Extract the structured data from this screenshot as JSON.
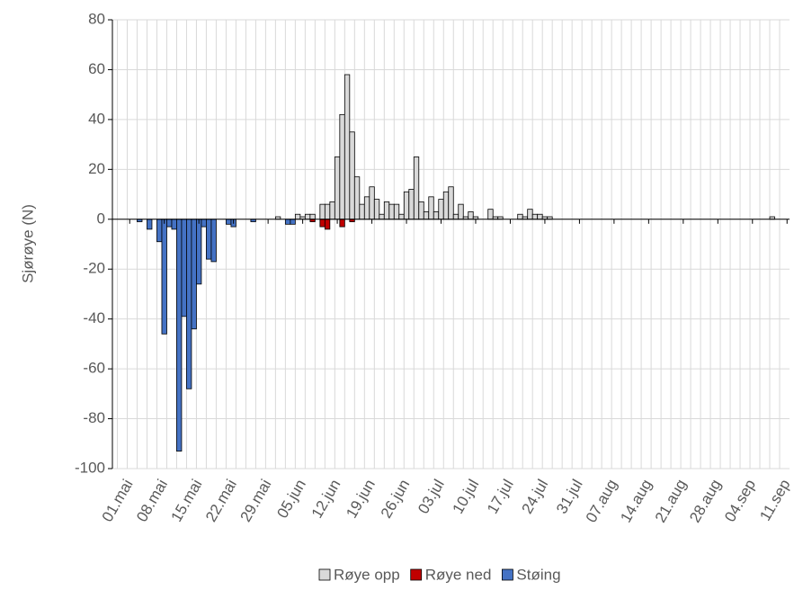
{
  "chart_data": {
    "type": "bar",
    "stacked": true,
    "y_label": "Sjørøye (N)",
    "categories": [
      null,
      null,
      null,
      "01.mai",
      null,
      null,
      null,
      null,
      null,
      null,
      "08.mai",
      null,
      null,
      null,
      null,
      null,
      null,
      "15.mai",
      null,
      null,
      null,
      null,
      null,
      null,
      "22.mai",
      null,
      null,
      null,
      null,
      null,
      null,
      "29.mai",
      null,
      null,
      null,
      null,
      null,
      null,
      "05.jun",
      null,
      null,
      null,
      null,
      null,
      null,
      "12.jun",
      null,
      null,
      null,
      null,
      null,
      null,
      "19.jun",
      null,
      null,
      null,
      null,
      null,
      null,
      "26.jun",
      null,
      null,
      null,
      null,
      null,
      null,
      "03.jul",
      null,
      null,
      null,
      null,
      null,
      null,
      "10.jul",
      null,
      null,
      null,
      null,
      null,
      null,
      "17.jul",
      null,
      null,
      null,
      null,
      null,
      null,
      "24.jul",
      null,
      null,
      null,
      null,
      null,
      null,
      "31.jul",
      null,
      null,
      null,
      null,
      null,
      null,
      "07.aug",
      null,
      null,
      null,
      null,
      null,
      null,
      "14.aug",
      null,
      null,
      null,
      null,
      null,
      null,
      "21.aug",
      null,
      null,
      null,
      null,
      null,
      null,
      "28.aug",
      null,
      null,
      null,
      null,
      null,
      null,
      "04.sep",
      null,
      null,
      null,
      null,
      null,
      null,
      "11.sep"
    ],
    "series": [
      {
        "name": "Røye opp",
        "color": "#d9d9d9",
        "values": [
          0,
          0,
          0,
          0,
          0,
          0,
          0,
          0,
          0,
          0,
          0,
          0,
          0,
          0,
          0,
          0,
          0,
          0,
          0,
          0,
          0,
          0,
          0,
          0,
          0,
          0,
          0,
          0,
          0,
          0,
          0,
          0,
          0,
          1,
          0,
          0,
          0,
          2,
          1,
          2,
          2,
          0,
          6,
          6,
          7,
          25,
          42,
          58,
          35,
          17,
          6,
          9,
          13,
          8,
          2,
          7,
          6,
          6,
          2,
          11,
          12,
          25,
          7,
          3,
          9,
          3,
          8,
          11,
          13,
          2,
          6,
          1,
          3,
          1,
          0,
          0,
          4,
          1,
          1,
          0,
          0,
          0,
          2,
          1,
          4,
          2,
          2,
          1,
          1,
          0,
          0,
          0,
          0,
          0,
          0,
          0,
          0,
          0,
          0,
          0,
          0,
          0,
          0,
          0,
          0,
          0,
          0,
          0,
          0,
          0,
          0,
          0,
          0,
          0,
          0,
          0,
          0,
          0,
          0,
          0,
          0,
          0,
          0,
          0,
          0,
          0,
          0,
          0,
          0,
          0,
          0,
          0,
          0,
          1,
          0,
          0,
          0
        ]
      },
      {
        "name": "Røye ned",
        "color": "#c00000",
        "values": [
          0,
          0,
          0,
          0,
          0,
          0,
          0,
          0,
          0,
          0,
          0,
          0,
          0,
          0,
          0,
          0,
          0,
          0,
          0,
          0,
          0,
          0,
          0,
          0,
          0,
          0,
          0,
          0,
          0,
          0,
          0,
          0,
          0,
          0,
          0,
          0,
          0,
          0,
          0,
          0,
          -1,
          0,
          -3,
          -4,
          0,
          0,
          -3,
          0,
          -1,
          0,
          0,
          0,
          0,
          0,
          0,
          0,
          0,
          0,
          0,
          0,
          0,
          0,
          0,
          0,
          0,
          0,
          0,
          0,
          0,
          0,
          0,
          0,
          0,
          0,
          0,
          0,
          0,
          0,
          0,
          0,
          0,
          0,
          0,
          0,
          0,
          0,
          0,
          0,
          0,
          0,
          0,
          0,
          0,
          0,
          0,
          0,
          0,
          0,
          0,
          0,
          0,
          0,
          0,
          0,
          0,
          0,
          0,
          0,
          0,
          0,
          0,
          0,
          0,
          0,
          0,
          0,
          0,
          0,
          0,
          0,
          0,
          0,
          0,
          0,
          0,
          0,
          0,
          0,
          0,
          0,
          0,
          0,
          0,
          0,
          0,
          0,
          0
        ]
      },
      {
        "name": "Støing",
        "color": "#4472c4",
        "values": [
          0,
          0,
          0,
          0,
          0,
          -1,
          0,
          -4,
          0,
          -9,
          -46,
          -3,
          -4,
          -93,
          -39,
          -68,
          -44,
          -26,
          -3,
          -16,
          -17,
          0,
          0,
          -2,
          -3,
          0,
          0,
          0,
          -1,
          0,
          0,
          0,
          0,
          0,
          0,
          -2,
          -2,
          0,
          0,
          0,
          0,
          0,
          0,
          0,
          0,
          0,
          0,
          0,
          0,
          0,
          0,
          0,
          0,
          0,
          0,
          0,
          0,
          0,
          0,
          0,
          0,
          0,
          0,
          0,
          0,
          0,
          0,
          0,
          0,
          0,
          0,
          0,
          0,
          0,
          0,
          0,
          0,
          0,
          0,
          0,
          0,
          0,
          0,
          0,
          0,
          0,
          0,
          0,
          0,
          0,
          0,
          0,
          0,
          0,
          0,
          0,
          0,
          0,
          0,
          0,
          0,
          0,
          0,
          0,
          0,
          0,
          0,
          0,
          0,
          0,
          0,
          0,
          0,
          0,
          0,
          0,
          0,
          0,
          0,
          0,
          0,
          0,
          0,
          0,
          0,
          0,
          0,
          0,
          0,
          0,
          0,
          0,
          0,
          0,
          0,
          0,
          0
        ]
      }
    ],
    "ylim": [
      -100,
      80
    ],
    "yticks": [
      -100,
      -80,
      -60,
      -40,
      -20,
      0,
      20,
      40,
      60,
      80
    ],
    "grid": true,
    "legend": "bottom"
  }
}
